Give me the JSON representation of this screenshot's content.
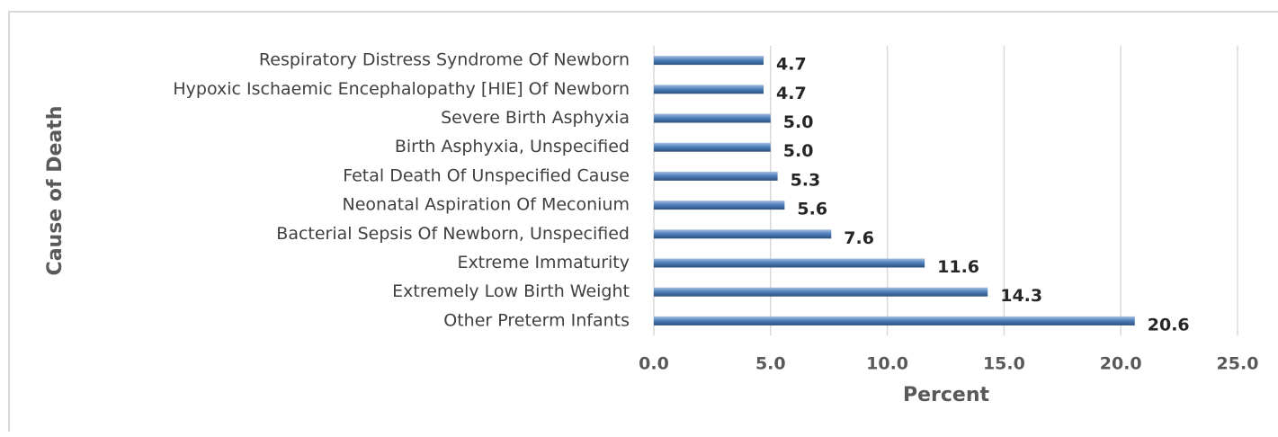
{
  "chart_data": {
    "type": "bar",
    "orientation": "horizontal",
    "categories": [
      "Respiratory Distress Syndrome Of Newborn",
      "Hypoxic Ischaemic Encephalopathy [HIE] Of Newborn",
      "Severe Birth Asphyxia",
      "Birth Asphyxia, Unspecified",
      "Fetal Death Of Unspecified Cause",
      "Neonatal Aspiration Of Meconium",
      "Bacterial Sepsis Of Newborn, Unspecified",
      "Extreme Immaturity",
      "Extremely Low Birth Weight",
      "Other Preterm Infants"
    ],
    "values": [
      4.7,
      4.7,
      5.0,
      5.0,
      5.3,
      5.6,
      7.6,
      11.6,
      14.3,
      20.6
    ],
    "value_labels": [
      "4.7",
      "4.7",
      "5.0",
      "5.0",
      "5.3",
      "5.6",
      "7.6",
      "11.6",
      "14.3",
      "20.6"
    ],
    "color": "#4f81bd",
    "xlabel": "Percent",
    "ylabel": "Cause of Death",
    "xlim": [
      0,
      25
    ],
    "xticks": [
      {
        "value": 0,
        "label": "0.0"
      },
      {
        "value": 5,
        "label": "5.0"
      },
      {
        "value": 10,
        "label": "10.0"
      },
      {
        "value": 15,
        "label": "15.0"
      },
      {
        "value": 20,
        "label": "20.0"
      },
      {
        "value": 25,
        "label": "25.0"
      }
    ],
    "grid": true
  }
}
